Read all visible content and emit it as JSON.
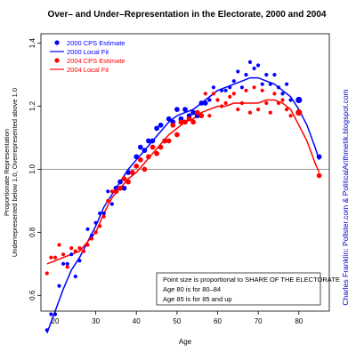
{
  "chart_data": {
    "type": "scatter",
    "title": "Over– and Under–Representation in the Electorate, 2000 and 2004",
    "xlabel": "Age",
    "ylabel_line1": "Proportionate Representation",
    "ylabel_line2": "Underrepresented below 1.0, Overrepresented above 1.0",
    "xlim": [
      16.5,
      87.5
    ],
    "ylim": [
      0.55,
      1.43
    ],
    "x_ticks": [
      20,
      30,
      40,
      50,
      60,
      70,
      80
    ],
    "y_ticks": [
      0.6,
      0.8,
      1.0,
      1.2,
      1.4
    ],
    "reference_line": 1.0,
    "legend_position": "top-left",
    "legend": [
      {
        "label": "2000 CPS Estimate",
        "kind": "point",
        "color": "#0000ff"
      },
      {
        "label": "2000 Local Fit",
        "kind": "line",
        "color": "#0000ff"
      },
      {
        "label": "2004 CPS Estimate",
        "kind": "point",
        "color": "#ff0000"
      },
      {
        "label": "2004 Local Fit",
        "kind": "line",
        "color": "#ff0000"
      }
    ],
    "note": [
      "Point size is proportional to SHARE OF THE ELECTORATE",
      "Age 80 is for 80–84",
      "Age 85 is for 85 and up"
    ],
    "credit": "Charles Franklin: Pollster.com & PoliticalArithmetik.blogspot.com",
    "series": [
      {
        "name": "2000 CPS Estimate",
        "color": "#0000ff",
        "points": [
          [
            18,
            0.49,
            2
          ],
          [
            19,
            0.54,
            2
          ],
          [
            20,
            0.54,
            2
          ],
          [
            21,
            0.63,
            2
          ],
          [
            22,
            0.7,
            2
          ],
          [
            23,
            0.7,
            2
          ],
          [
            24,
            0.73,
            2
          ],
          [
            25,
            0.66,
            2
          ],
          [
            26,
            0.71,
            2
          ],
          [
            27,
            0.74,
            2
          ],
          [
            28,
            0.81,
            2
          ],
          [
            29,
            0.79,
            2
          ],
          [
            30,
            0.83,
            2
          ],
          [
            31,
            0.86,
            2
          ],
          [
            32,
            0.86,
            2
          ],
          [
            33,
            0.93,
            2
          ],
          [
            34,
            0.89,
            2
          ],
          [
            35,
            0.94,
            3
          ],
          [
            36,
            0.96,
            3
          ],
          [
            37,
            0.94,
            3
          ],
          [
            38,
            0.99,
            3
          ],
          [
            39,
            0.99,
            3
          ],
          [
            40,
            1.04,
            3
          ],
          [
            41,
            1.07,
            3
          ],
          [
            42,
            1.06,
            3
          ],
          [
            43,
            1.09,
            3
          ],
          [
            44,
            1.09,
            3
          ],
          [
            45,
            1.13,
            3
          ],
          [
            46,
            1.14,
            3
          ],
          [
            47,
            1.09,
            3
          ],
          [
            48,
            1.16,
            3
          ],
          [
            49,
            1.15,
            3
          ],
          [
            50,
            1.19,
            3
          ],
          [
            51,
            1.16,
            3
          ],
          [
            52,
            1.19,
            3
          ],
          [
            53,
            1.17,
            3
          ],
          [
            54,
            1.18,
            3
          ],
          [
            55,
            1.17,
            3
          ],
          [
            56,
            1.21,
            3
          ],
          [
            57,
            1.21,
            3
          ],
          [
            58,
            1.22,
            2
          ],
          [
            59,
            1.26,
            2
          ],
          [
            60,
            1.22,
            2
          ],
          [
            61,
            1.25,
            2
          ],
          [
            62,
            1.25,
            2
          ],
          [
            63,
            1.26,
            2
          ],
          [
            64,
            1.28,
            2
          ],
          [
            65,
            1.31,
            2
          ],
          [
            66,
            1.26,
            2
          ],
          [
            67,
            1.3,
            2
          ],
          [
            68,
            1.34,
            2
          ],
          [
            69,
            1.32,
            2
          ],
          [
            70,
            1.33,
            2
          ],
          [
            71,
            1.27,
            2
          ],
          [
            72,
            1.3,
            2
          ],
          [
            73,
            1.27,
            2
          ],
          [
            74,
            1.3,
            2
          ],
          [
            75,
            1.26,
            2
          ],
          [
            76,
            1.24,
            2
          ],
          [
            77,
            1.27,
            2
          ],
          [
            78,
            1.22,
            2
          ],
          [
            80,
            1.22,
            4
          ],
          [
            85,
            1.04,
            3
          ]
        ]
      },
      {
        "name": "2004 CPS Estimate",
        "color": "#ff0000",
        "points": [
          [
            18,
            0.67,
            2
          ],
          [
            19,
            0.72,
            2
          ],
          [
            20,
            0.72,
            2
          ],
          [
            21,
            0.76,
            2
          ],
          [
            22,
            0.73,
            2
          ],
          [
            23,
            0.69,
            2
          ],
          [
            24,
            0.75,
            2
          ],
          [
            25,
            0.74,
            2
          ],
          [
            26,
            0.75,
            2
          ],
          [
            27,
            0.74,
            2
          ],
          [
            28,
            0.76,
            2
          ],
          [
            29,
            0.78,
            2
          ],
          [
            30,
            0.8,
            2
          ],
          [
            31,
            0.82,
            2
          ],
          [
            32,
            0.85,
            2
          ],
          [
            33,
            0.9,
            2
          ],
          [
            34,
            0.93,
            2
          ],
          [
            35,
            0.93,
            3
          ],
          [
            36,
            0.94,
            3
          ],
          [
            37,
            0.97,
            3
          ],
          [
            38,
            0.96,
            3
          ],
          [
            39,
            0.99,
            3
          ],
          [
            40,
            1.01,
            3
          ],
          [
            41,
            1.03,
            3
          ],
          [
            42,
            1.0,
            3
          ],
          [
            43,
            1.04,
            3
          ],
          [
            44,
            1.07,
            3
          ],
          [
            45,
            1.05,
            3
          ],
          [
            46,
            1.07,
            3
          ],
          [
            47,
            1.09,
            3
          ],
          [
            48,
            1.09,
            3
          ],
          [
            49,
            1.14,
            3
          ],
          [
            50,
            1.11,
            3
          ],
          [
            51,
            1.15,
            3
          ],
          [
            52,
            1.15,
            3
          ],
          [
            53,
            1.16,
            3
          ],
          [
            54,
            1.15,
            3
          ],
          [
            55,
            1.18,
            3
          ],
          [
            56,
            1.17,
            3
          ],
          [
            57,
            1.24,
            2
          ],
          [
            58,
            1.17,
            2
          ],
          [
            59,
            1.24,
            2
          ],
          [
            60,
            1.22,
            2
          ],
          [
            61,
            1.2,
            2
          ],
          [
            62,
            1.21,
            2
          ],
          [
            63,
            1.23,
            2
          ],
          [
            64,
            1.24,
            2
          ],
          [
            65,
            1.19,
            2
          ],
          [
            66,
            1.21,
            2
          ],
          [
            67,
            1.25,
            2
          ],
          [
            68,
            1.18,
            2
          ],
          [
            69,
            1.26,
            2
          ],
          [
            70,
            1.19,
            2
          ],
          [
            71,
            1.25,
            2
          ],
          [
            72,
            1.21,
            2
          ],
          [
            73,
            1.18,
            2
          ],
          [
            74,
            1.24,
            2
          ],
          [
            75,
            1.21,
            2
          ],
          [
            76,
            1.22,
            2
          ],
          [
            77,
            1.19,
            2
          ],
          [
            78,
            1.17,
            2
          ],
          [
            80,
            1.18,
            4
          ],
          [
            85,
            0.98,
            3
          ]
        ]
      }
    ],
    "fits": [
      {
        "name": "2000 Local Fit",
        "color": "#0000ff",
        "points": [
          [
            18,
            0.48
          ],
          [
            20,
            0.55
          ],
          [
            22,
            0.62
          ],
          [
            24,
            0.68
          ],
          [
            26,
            0.72
          ],
          [
            28,
            0.77
          ],
          [
            30,
            0.82
          ],
          [
            32,
            0.88
          ],
          [
            34,
            0.92
          ],
          [
            36,
            0.96
          ],
          [
            38,
            1.0
          ],
          [
            40,
            1.03
          ],
          [
            42,
            1.06
          ],
          [
            44,
            1.09
          ],
          [
            46,
            1.12
          ],
          [
            48,
            1.15
          ],
          [
            50,
            1.17
          ],
          [
            52,
            1.18
          ],
          [
            54,
            1.19
          ],
          [
            56,
            1.21
          ],
          [
            58,
            1.23
          ],
          [
            60,
            1.25
          ],
          [
            62,
            1.26
          ],
          [
            64,
            1.27
          ],
          [
            66,
            1.28
          ],
          [
            68,
            1.29
          ],
          [
            70,
            1.29
          ],
          [
            72,
            1.28
          ],
          [
            74,
            1.27
          ],
          [
            76,
            1.25
          ],
          [
            78,
            1.23
          ],
          [
            80,
            1.19
          ],
          [
            82,
            1.14
          ],
          [
            84,
            1.07
          ],
          [
            85,
            1.03
          ]
        ]
      },
      {
        "name": "2004 Local Fit",
        "color": "#ff0000",
        "points": [
          [
            18,
            0.7
          ],
          [
            20,
            0.71
          ],
          [
            22,
            0.72
          ],
          [
            24,
            0.73
          ],
          [
            26,
            0.74
          ],
          [
            28,
            0.77
          ],
          [
            30,
            0.8
          ],
          [
            32,
            0.86
          ],
          [
            34,
            0.91
          ],
          [
            36,
            0.94
          ],
          [
            38,
            0.97
          ],
          [
            40,
            0.99
          ],
          [
            42,
            1.02
          ],
          [
            44,
            1.05
          ],
          [
            46,
            1.08
          ],
          [
            48,
            1.11
          ],
          [
            50,
            1.13
          ],
          [
            52,
            1.15
          ],
          [
            54,
            1.16
          ],
          [
            56,
            1.18
          ],
          [
            58,
            1.19
          ],
          [
            60,
            1.2
          ],
          [
            62,
            1.2
          ],
          [
            64,
            1.21
          ],
          [
            66,
            1.21
          ],
          [
            68,
            1.21
          ],
          [
            70,
            1.21
          ],
          [
            72,
            1.22
          ],
          [
            74,
            1.22
          ],
          [
            76,
            1.21
          ],
          [
            78,
            1.19
          ],
          [
            80,
            1.14
          ],
          [
            82,
            1.09
          ],
          [
            84,
            1.02
          ],
          [
            85,
            0.99
          ]
        ]
      }
    ]
  }
}
